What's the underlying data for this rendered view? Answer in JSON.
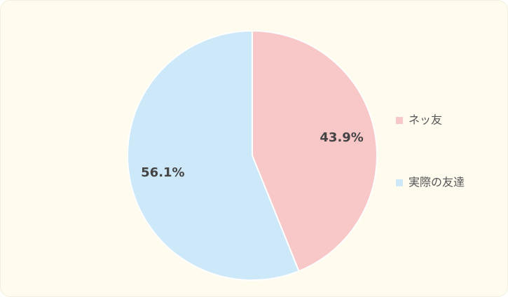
{
  "chart_data": {
    "type": "pie",
    "categories": [
      "ネッ友",
      "実際の友達"
    ],
    "values": [
      43.9,
      56.1
    ],
    "value_labels": [
      "43.9%",
      "56.1%"
    ],
    "colors": [
      "#f8c8c9",
      "#cde8f9"
    ],
    "legend": "right"
  }
}
